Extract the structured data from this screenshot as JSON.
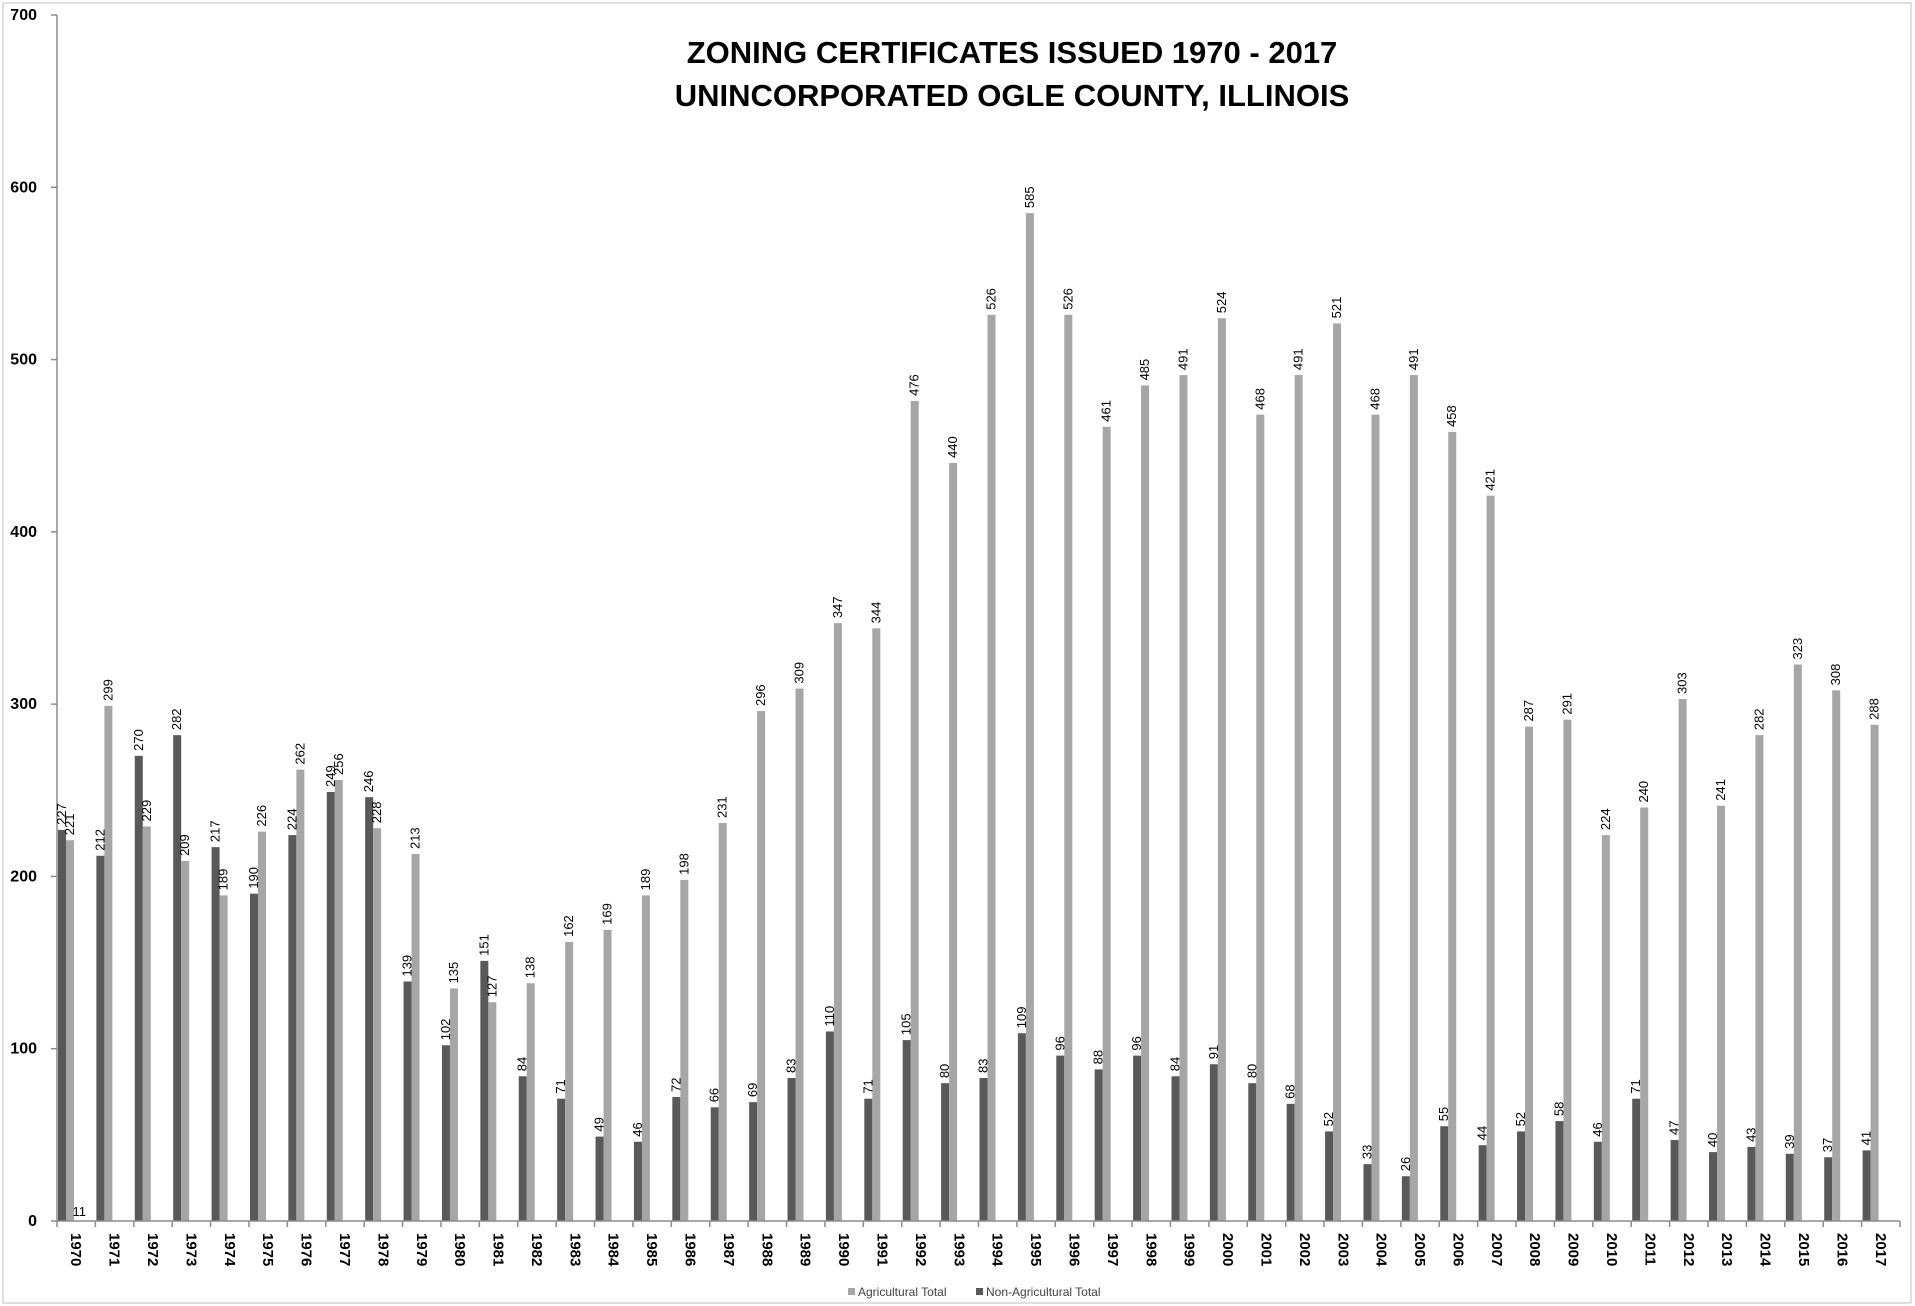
{
  "chart_data": {
    "type": "bar",
    "title": "ZONING CERTIFICATES ISSUED 1970 - 2017",
    "subtitle": "UNINCORPORATED OGLE COUNTY, ILLINOIS",
    "xlabel": "",
    "ylabel": "",
    "ylim": [
      0,
      700
    ],
    "yticks": [
      "0",
      "100",
      "200",
      "300",
      "400",
      "500",
      "600",
      "700"
    ],
    "grid": false,
    "legend_position": "bottom",
    "categories": [
      "1970",
      "1971",
      "1972",
      "1973",
      "1974",
      "1975",
      "1976",
      "1977",
      "1978",
      "1979",
      "1980",
      "1981",
      "1982",
      "1983",
      "1984",
      "1985",
      "1986",
      "1987",
      "1988",
      "1989",
      "1990",
      "1991",
      "1992",
      "1993",
      "1994",
      "1995",
      "1996",
      "1997",
      "1998",
      "1999",
      "2000",
      "2001",
      "2002",
      "2003",
      "2004",
      "2005",
      "2006",
      "2007",
      "2008",
      "2009",
      "2010",
      "2011",
      "2012",
      "2013",
      "2014",
      "2015",
      "2016",
      "2017"
    ],
    "series": [
      {
        "name": "Non-Agricultural Total",
        "color": "#595959",
        "values": [
          227,
          212,
          270,
          282,
          217,
          190,
          224,
          249,
          246,
          139,
          102,
          151,
          84,
          71,
          49,
          46,
          72,
          66,
          69,
          83,
          110,
          71,
          105,
          80,
          83,
          109,
          96,
          88,
          96,
          84,
          91,
          80,
          68,
          52,
          33,
          26,
          55,
          44,
          52,
          58,
          46,
          71,
          47,
          40,
          43,
          39,
          37,
          41
        ]
      },
      {
        "name": "Agricultural Total",
        "color": "#a6a6a6",
        "values": [
          221,
          299,
          229,
          209,
          189,
          226,
          262,
          256,
          228,
          213,
          135,
          127,
          138,
          162,
          169,
          189,
          198,
          231,
          296,
          309,
          347,
          344,
          476,
          440,
          526,
          585,
          526,
          461,
          485,
          491,
          524,
          468,
          491,
          521,
          468,
          491,
          458,
          421,
          287,
          291,
          224,
          240,
          303,
          241,
          282,
          323,
          308,
          288
        ]
      }
    ],
    "extra_labels": [
      {
        "category": "1970",
        "text": "11"
      }
    ],
    "legend": [
      {
        "name": "Agricultural Total",
        "color": "#a6a6a6"
      },
      {
        "name": "Non-Agricultural Total",
        "color": "#595959"
      }
    ]
  }
}
